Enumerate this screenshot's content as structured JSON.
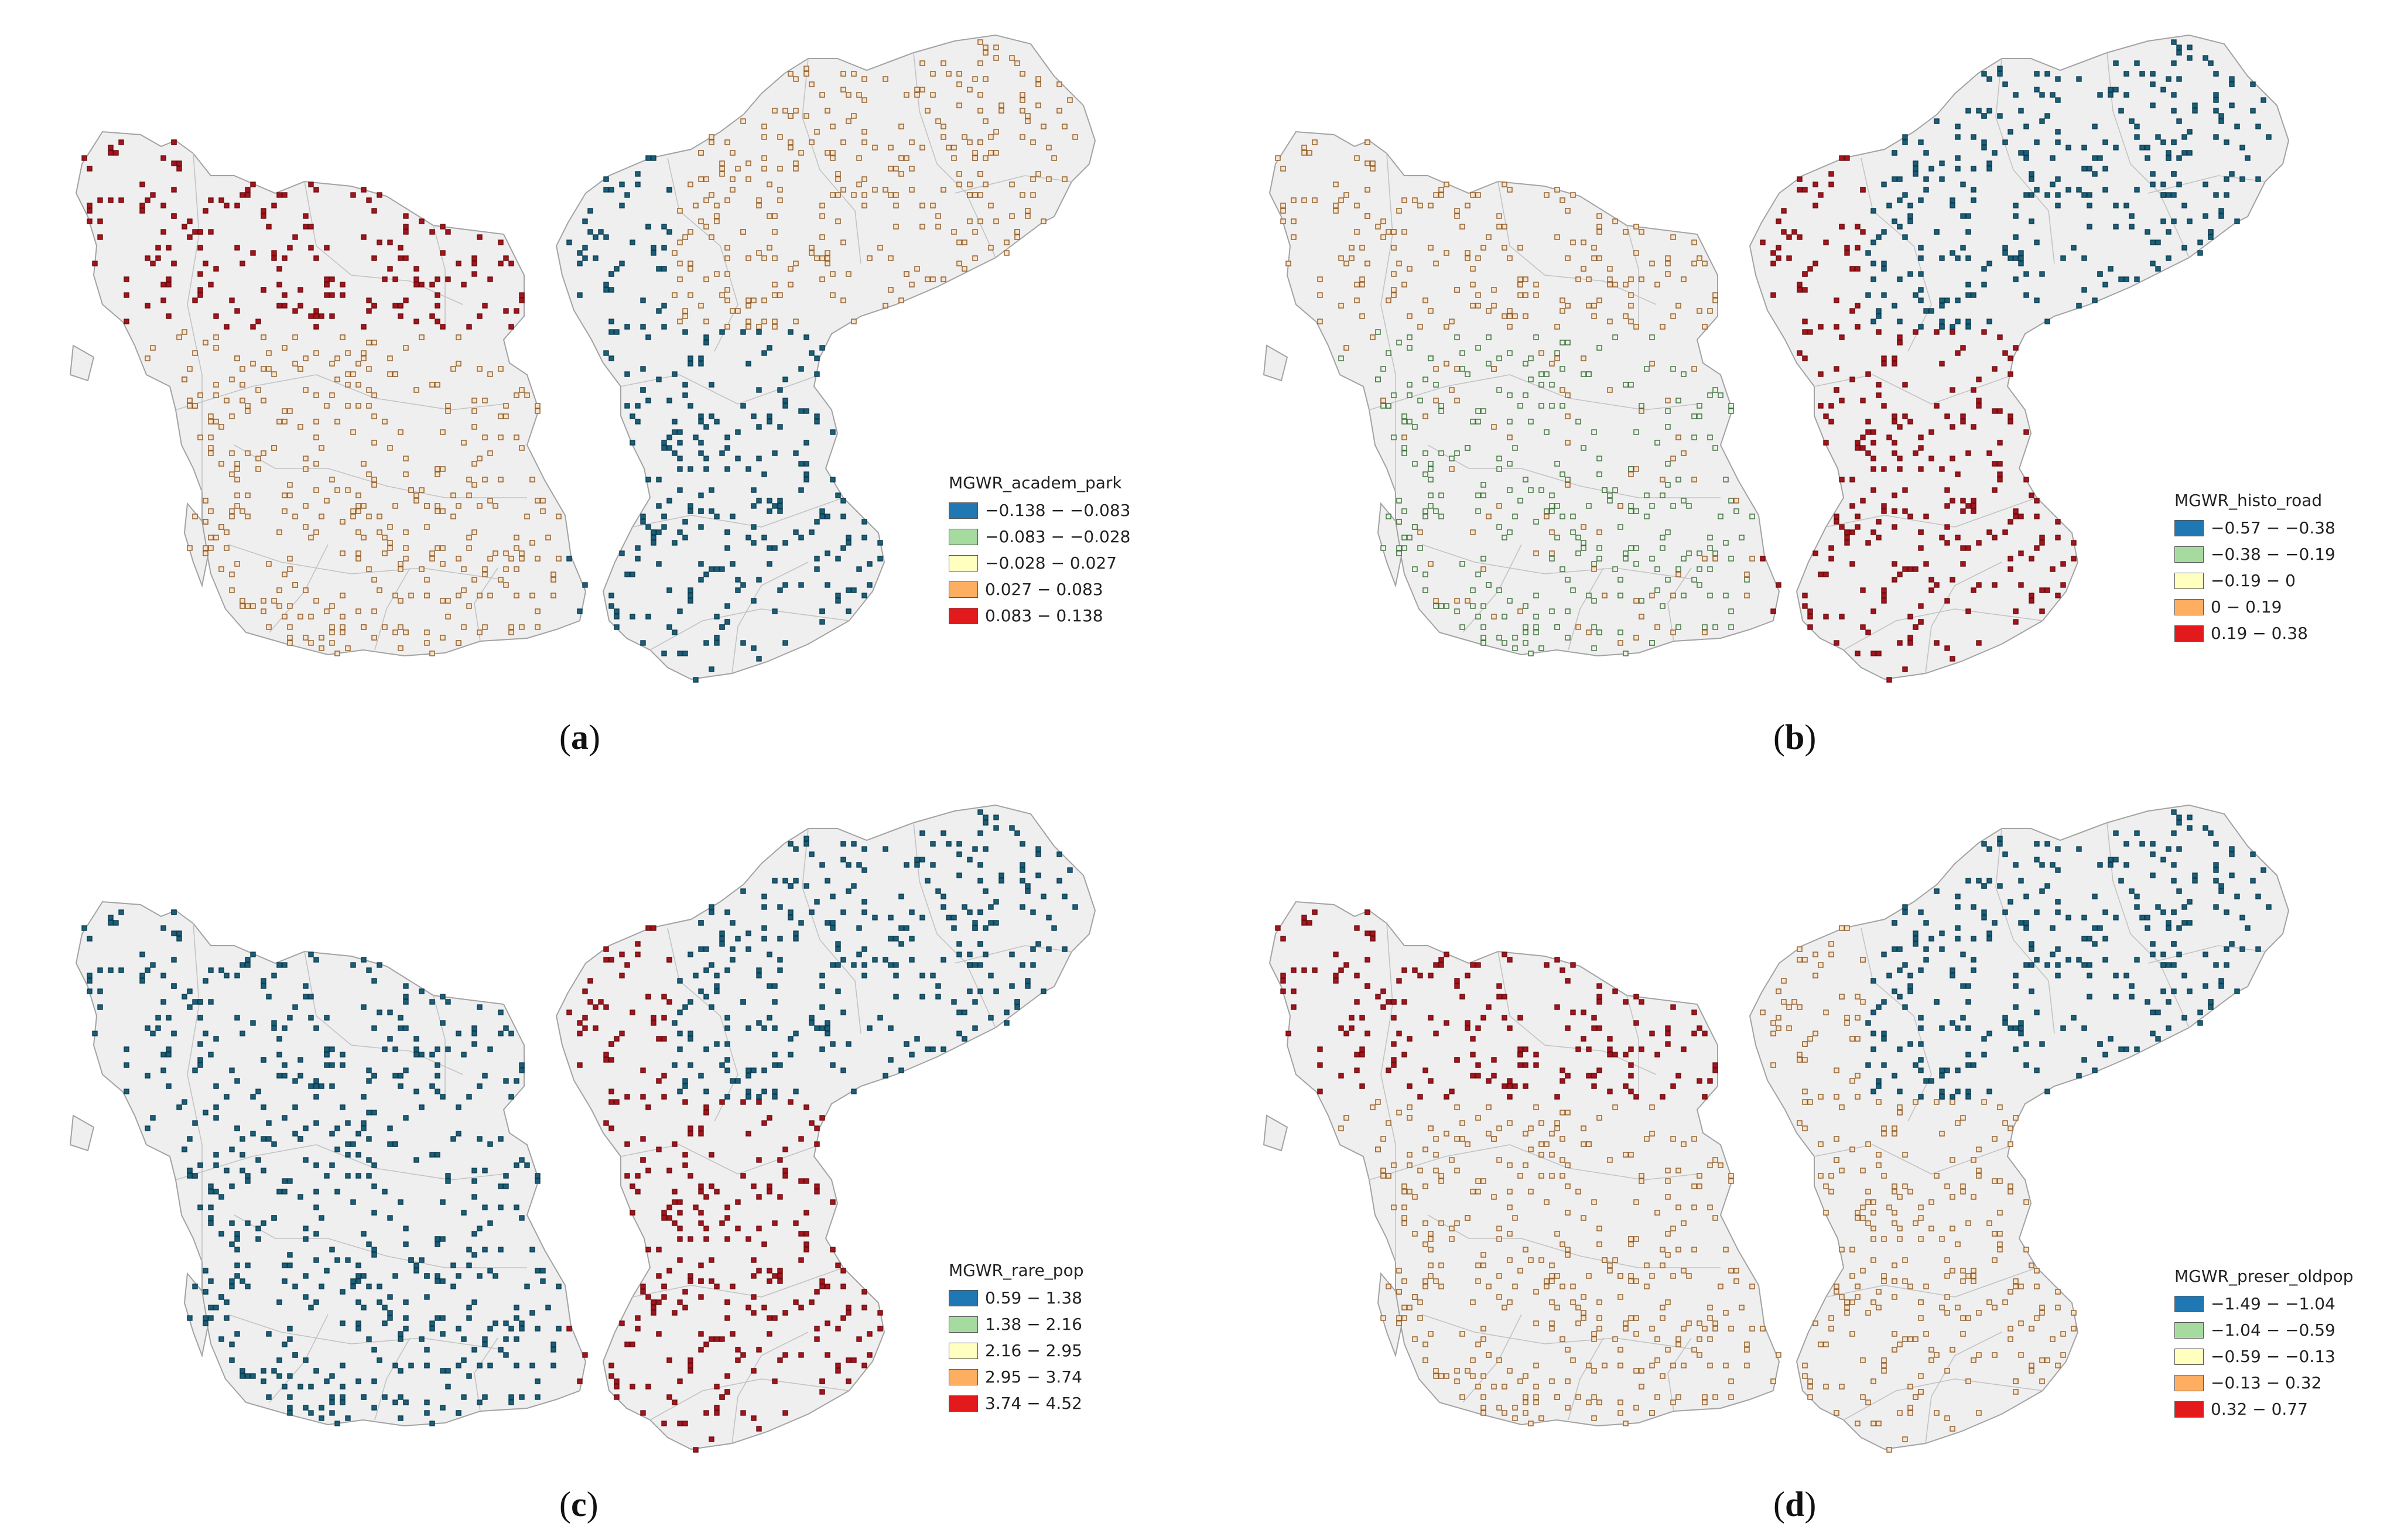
{
  "panels": [
    {
      "label": "a",
      "legend": {
        "title": "MGWR_academ_park",
        "items": [
          {
            "label": "−0.138 − −0.083",
            "color": "#1f78b4"
          },
          {
            "label": "−0.083 − −0.028",
            "color": "#a6dba0"
          },
          {
            "label": "−0.028 − 0.027",
            "color": "#ffffbf"
          },
          {
            "label": "0.027 − 0.083",
            "color": "#fdae61"
          },
          {
            "label": "0.083 − 0.138",
            "color": "#e31a1c"
          }
        ]
      }
    },
    {
      "label": "b",
      "legend": {
        "title": "MGWR_histo_road",
        "items": [
          {
            "label": "−0.57 − −0.38",
            "color": "#1f78b4"
          },
          {
            "label": "−0.38 − −0.19",
            "color": "#a6dba0"
          },
          {
            "label": "−0.19 − 0",
            "color": "#ffffbf"
          },
          {
            "label": "0 − 0.19",
            "color": "#fdae61"
          },
          {
            "label": "0.19 − 0.38",
            "color": "#e31a1c"
          }
        ]
      }
    },
    {
      "label": "c",
      "legend": {
        "title": "MGWR_rare_pop",
        "items": [
          {
            "label": "0.59 − 1.38",
            "color": "#1f78b4"
          },
          {
            "label": "1.38 − 2.16",
            "color": "#a6dba0"
          },
          {
            "label": "2.16 − 2.95",
            "color": "#ffffbf"
          },
          {
            "label": "2.95 − 3.74",
            "color": "#fdae61"
          },
          {
            "label": "3.74 − 4.52",
            "color": "#e31a1c"
          }
        ]
      }
    },
    {
      "label": "d",
      "legend": {
        "title": "MGWR_preser_oldpop",
        "items": [
          {
            "label": "−1.49 − −1.04",
            "color": "#1f78b4"
          },
          {
            "label": "−1.04 − −0.59",
            "color": "#a6dba0"
          },
          {
            "label": "−0.59 − −0.13",
            "color": "#ffffbf"
          },
          {
            "label": "−0.13 − 0.32",
            "color": "#fdae61"
          },
          {
            "label": "0.32 − 0.77",
            "color": "#e31a1c"
          }
        ]
      }
    }
  ],
  "colors": {
    "land": "#efefef",
    "boundary": "#a3a3a3",
    "dark_blue": "#1a5f7a",
    "dark_red": "#a3151c",
    "light_green": "#eaf4e4",
    "light_orange": "#fbe3c8"
  },
  "patterns": [
    [
      "r",
      "o",
      "o",
      "b"
    ],
    [
      "o",
      "g",
      "b",
      "r"
    ],
    [
      "B",
      "B",
      "B",
      "R"
    ],
    [
      "R",
      "o",
      "B",
      "O"
    ]
  ]
}
